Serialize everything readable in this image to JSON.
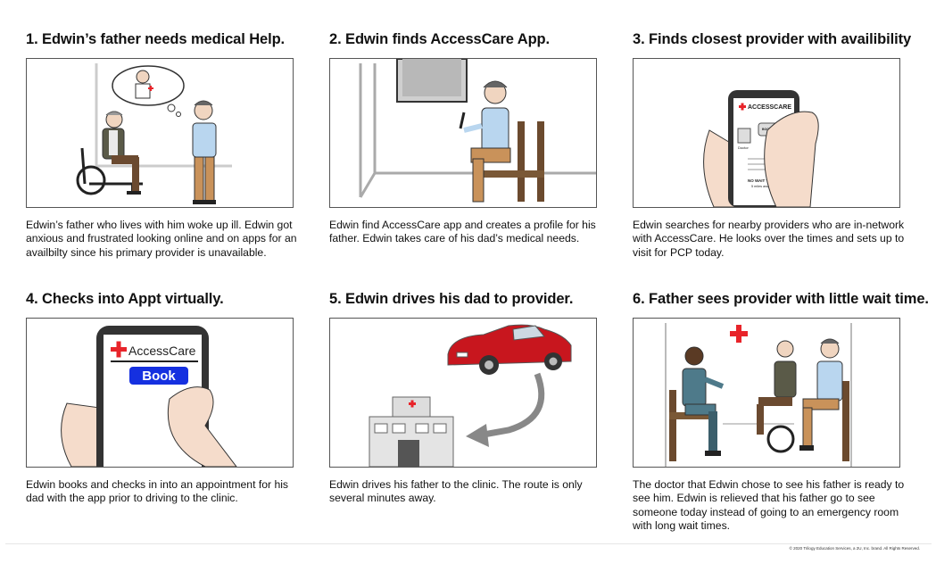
{
  "panels": [
    {
      "title": "1. Edwin’s father needs medical Help.",
      "text": "Edwin’s father who lives with him woke up ill. Edwin got anxious and frustrated looking online and on apps for an availbilty since his primary provider is unavailable."
    },
    {
      "title": "2. Edwin finds AccessCare App.",
      "text": "Edwin find AccessCare app and creates a profile for his father. Edwin takes care of his dad’s medical needs."
    },
    {
      "title": "3. Finds closest provider with availibility",
      "text": "Edwin searches for nearby providers who are in-network  with AccessCare. He looks over the times and sets up to visit for PCP today."
    },
    {
      "title": "4. Checks into Appt virtually.",
      "text": "Edwin books and checks in into an appointment for his dad with the app prior to driving to the clinic."
    },
    {
      "title": "5. Edwin drives his dad to provider.",
      "text": "Edwin drives his father to the clinic. The route is only several minutes away."
    },
    {
      "title": "6. Father sees provider with little wait time.",
      "text": "The doctor that Edwin chose to see his father is ready to see him. Edwin is relieved that his father go to see someone today instead of going to an emergency room with long wait times."
    }
  ],
  "app": {
    "brand_upper": "ACCESSCARE",
    "book_small": "BOOK APPOINTMENT",
    "doctor_label": "Doctor",
    "wait_label": "NO WAIT TIME",
    "distance_label": "5 miles away",
    "brand": "AccessCare",
    "book_button": "Book"
  },
  "footer": {
    "copyright": "© 2020 Trilogy Education Services, a 2U, Inc. brand. All Rights Reserved."
  },
  "colors": {
    "accent_red": "#e8242a",
    "book_blue": "#1530e0",
    "shirt_blue": "#b9d6ef"
  }
}
